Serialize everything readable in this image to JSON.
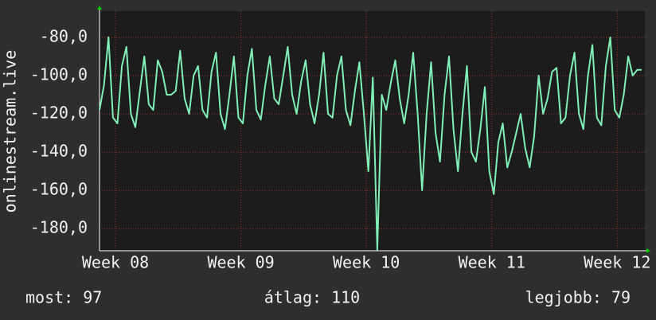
{
  "chart_data": {
    "type": "line",
    "y_label": "onlinestream.live",
    "xlim": [
      7.873,
      12.22
    ],
    "xticks": [
      {
        "value": 8,
        "label": "Week 08"
      },
      {
        "value": 9,
        "label": "Week 09"
      },
      {
        "value": 10,
        "label": "Week 10"
      },
      {
        "value": 11,
        "label": "Week 11"
      },
      {
        "value": 12,
        "label": "Week 12"
      }
    ],
    "ylim": [
      -191.6,
      -66.3
    ],
    "yticks": [
      {
        "value": -80,
        "label": "-80,0"
      },
      {
        "value": -100,
        "label": "-100,0"
      },
      {
        "value": -120,
        "label": "-120,0"
      },
      {
        "value": -140,
        "label": "-140,0"
      },
      {
        "value": -160,
        "label": "-160,0"
      },
      {
        "value": -180,
        "label": "-180,0"
      }
    ],
    "grid": true,
    "color": "#80f0b8",
    "values": [
      -118,
      -105,
      -80,
      -122,
      -125,
      -95,
      -85,
      -120,
      -127,
      -108,
      -90,
      -115,
      -118,
      -92,
      -98,
      -110,
      -110,
      -108,
      -87,
      -112,
      -120,
      -100,
      -95,
      -118,
      -122,
      -98,
      -88,
      -120,
      -128,
      -110,
      -90,
      -122,
      -125,
      -100,
      -86,
      -118,
      -123,
      -105,
      -90,
      -112,
      -115,
      -100,
      -85,
      -110,
      -120,
      -103,
      -92,
      -115,
      -125,
      -110,
      -88,
      -120,
      -122,
      -100,
      -90,
      -118,
      -126,
      -108,
      -93,
      -120,
      -150,
      -101,
      -191,
      -110,
      -118,
      -104,
      -92,
      -112,
      -125,
      -110,
      -88,
      -120,
      -160,
      -120,
      -93,
      -130,
      -145,
      -110,
      -90,
      -128,
      -150,
      -120,
      -95,
      -140,
      -145,
      -128,
      -106,
      -150,
      -162,
      -135,
      -125,
      -148,
      -140,
      -130,
      -120,
      -138,
      -148,
      -132,
      -100,
      -120,
      -112,
      -98,
      -96,
      -125,
      -122,
      -100,
      -88,
      -120,
      -128,
      -100,
      -84,
      -122,
      -126,
      -95,
      -80,
      -118,
      -122,
      -110,
      -90,
      -100,
      -97,
      -97
    ],
    "stats": [
      "most: 97",
      "átlag: 110",
      "legjobb: 79"
    ]
  }
}
